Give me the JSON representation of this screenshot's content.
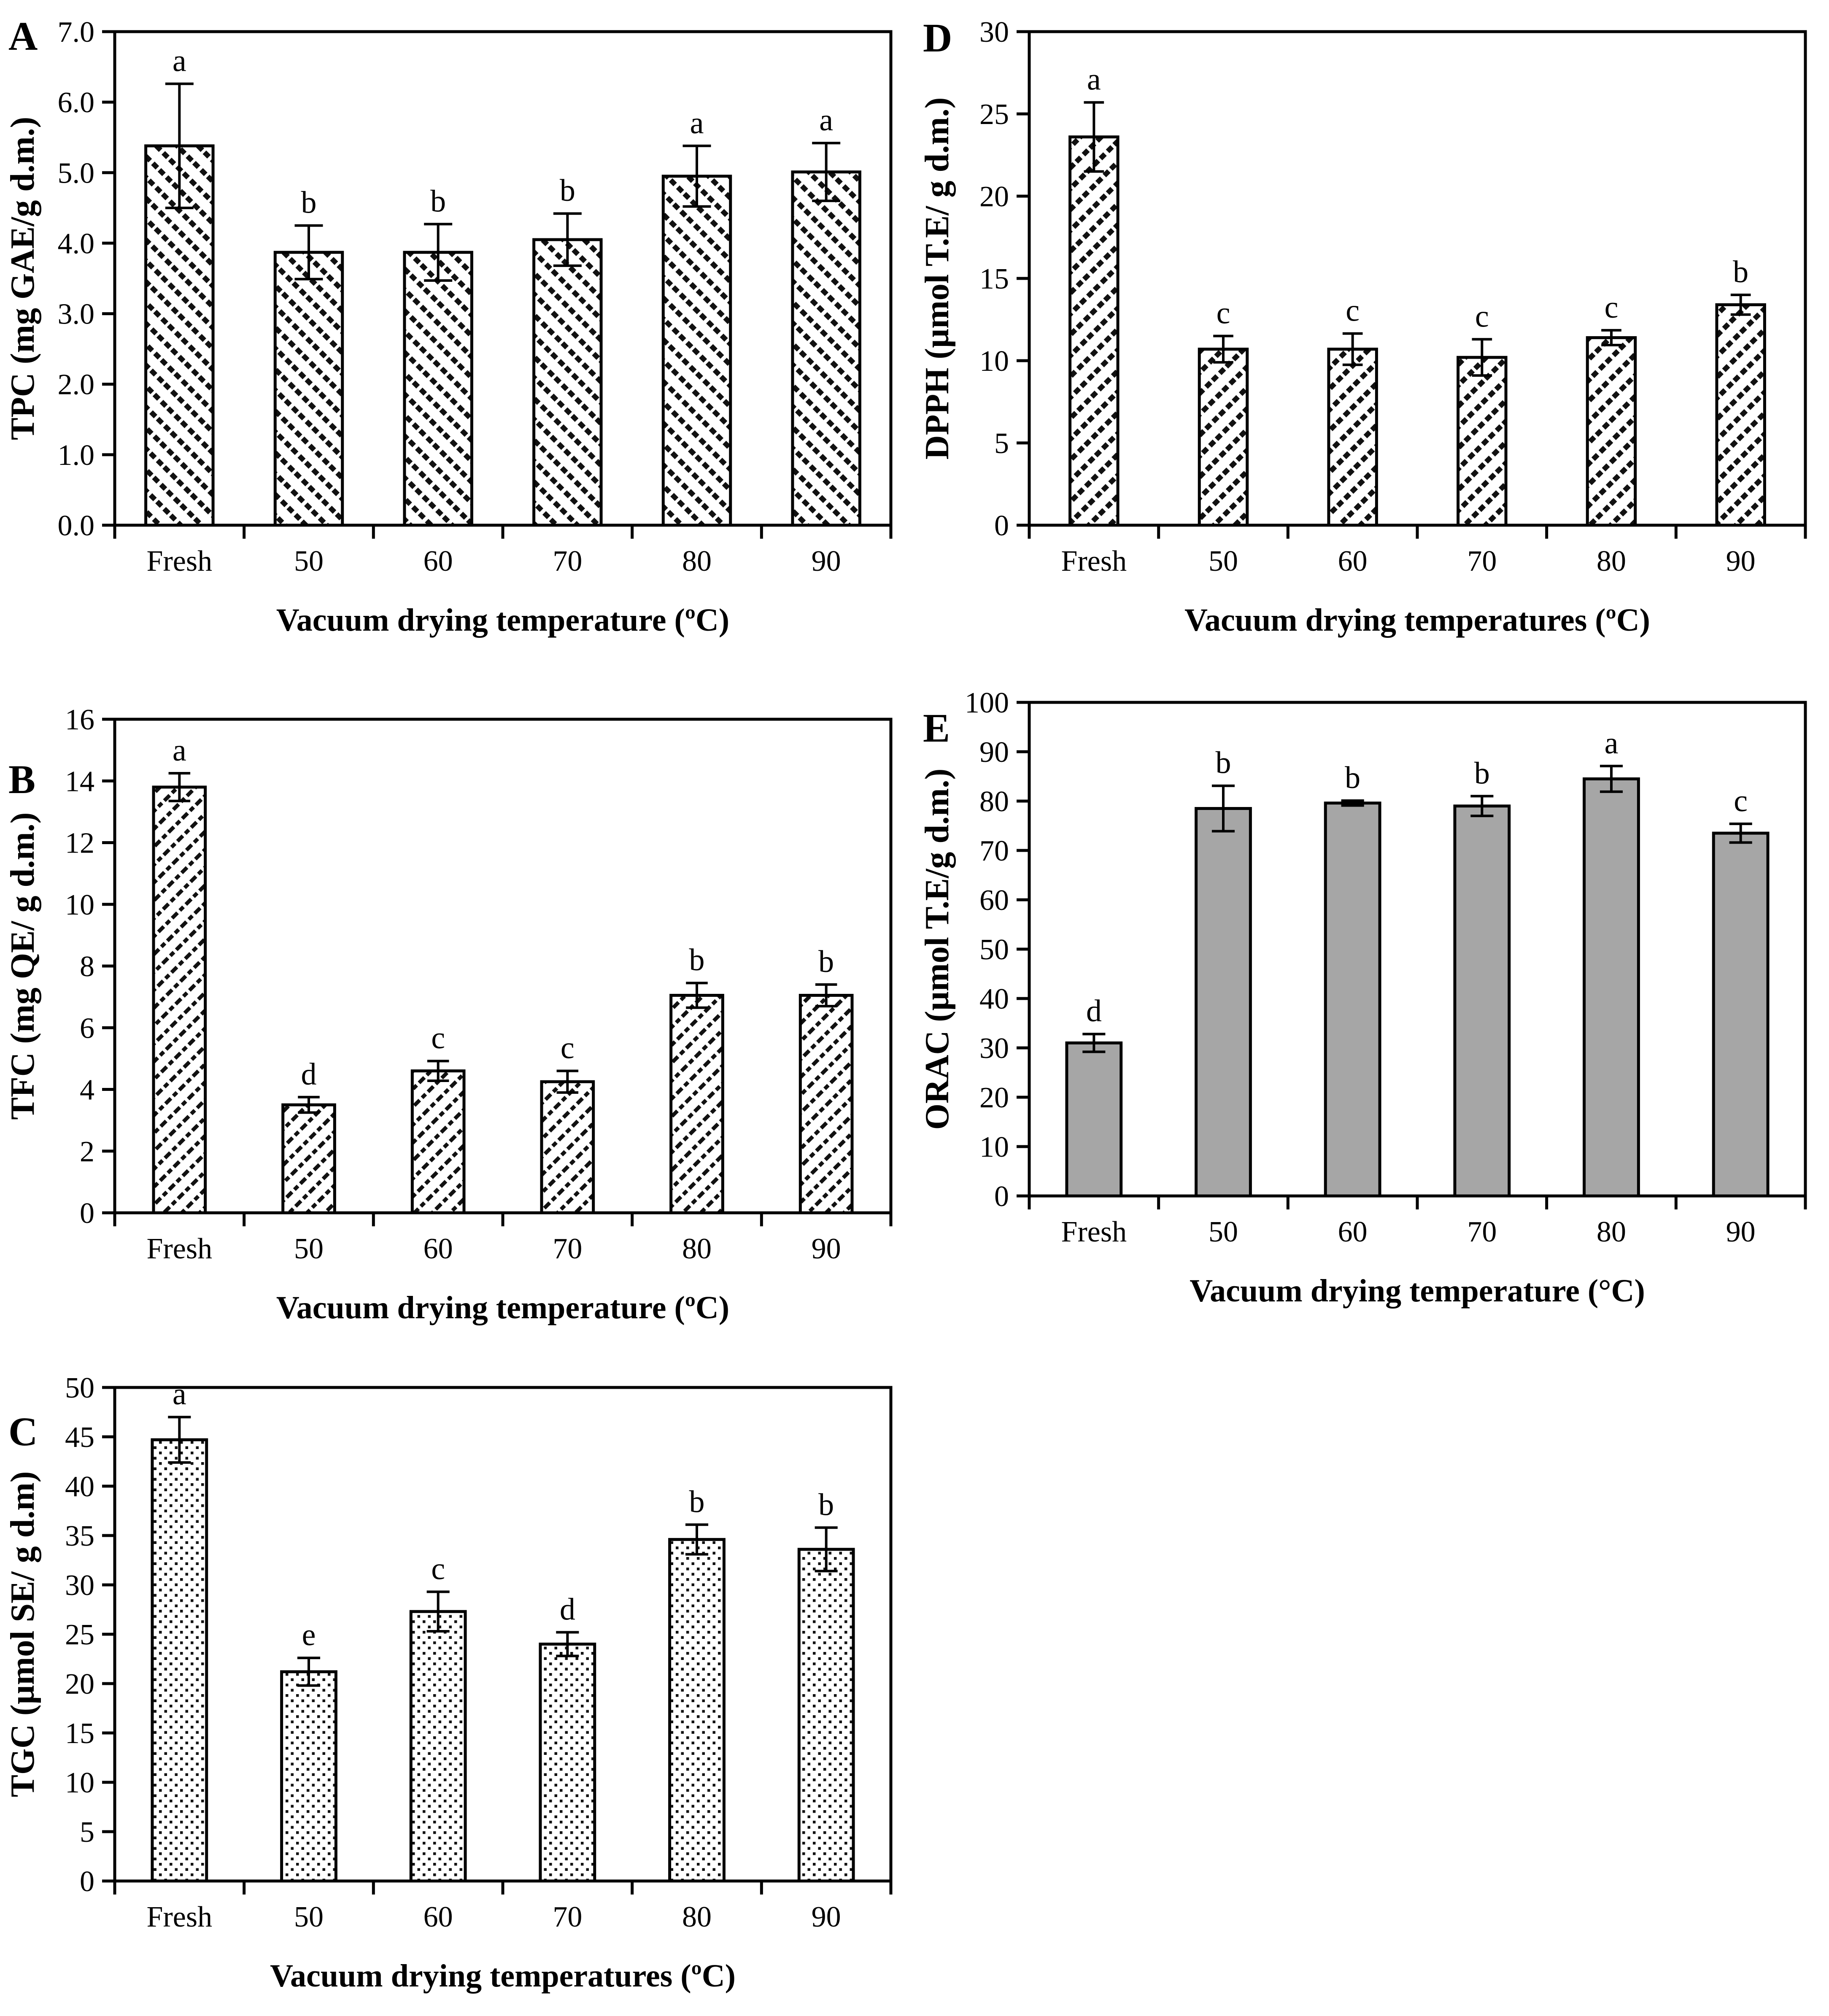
{
  "figure": {
    "background": "#ffffff",
    "bar_outline_color": "#000000",
    "solid_bar_color": "#a6a6a6"
  },
  "chart_data": [
    {
      "panel": "A",
      "type": "bar",
      "ylabel": "TPC (mg GAE/g d.m.)",
      "xlabel": "Vacuum drying temperature (ºC)",
      "categories": [
        "Fresh",
        "50",
        "60",
        "70",
        "80",
        "90"
      ],
      "values": [
        5.38,
        3.87,
        3.87,
        4.05,
        4.95,
        5.01
      ],
      "errors": [
        0.88,
        0.38,
        0.4,
        0.37,
        0.43,
        0.41
      ],
      "sig_letters": [
        "a",
        "b",
        "b",
        "b",
        "a",
        "a"
      ],
      "ylim": [
        0,
        7
      ],
      "ytick_step": 1,
      "ytick_decimals": 1,
      "bar_fill": "hatch-down-dashed",
      "grid": false,
      "legend": null
    },
    {
      "panel": "B",
      "type": "bar",
      "ylabel": "TFC (mg QE/ g d.m.)",
      "xlabel": "Vacuum drying temperature (ºC)",
      "categories": [
        "Fresh",
        "50",
        "60",
        "70",
        "80",
        "90"
      ],
      "values": [
        13.8,
        3.5,
        4.6,
        4.25,
        7.05,
        7.05
      ],
      "errors": [
        0.45,
        0.25,
        0.32,
        0.35,
        0.4,
        0.35
      ],
      "sig_letters": [
        "a",
        "d",
        "c",
        "c",
        "b",
        "b"
      ],
      "ylim": [
        0,
        16
      ],
      "ytick_step": 2,
      "ytick_decimals": 0,
      "bar_fill": "hatch-up-dashed-dense",
      "grid": false,
      "legend": null
    },
    {
      "panel": "C",
      "type": "bar",
      "ylabel": "TGC (µmol SE/ g d.m)",
      "xlabel": "Vacuum drying temperatures (ºC)",
      "categories": [
        "Fresh",
        "50",
        "60",
        "70",
        "80",
        "90"
      ],
      "values": [
        44.7,
        21.2,
        27.3,
        24.0,
        34.6,
        33.6
      ],
      "errors": [
        2.3,
        1.4,
        2.0,
        1.2,
        1.5,
        2.2
      ],
      "sig_letters": [
        "a",
        "e",
        "c",
        "d",
        "b",
        "b"
      ],
      "ylim": [
        0,
        50
      ],
      "ytick_step": 5,
      "ytick_decimals": 0,
      "bar_fill": "dots",
      "grid": false,
      "legend": null
    },
    {
      "panel": "D",
      "type": "bar",
      "ylabel": "DPPH (µmol T.E/ g d.m.)",
      "xlabel": "Vacuum drying temperatures (ºC)",
      "categories": [
        "Fresh",
        "50",
        "60",
        "70",
        "80",
        "90"
      ],
      "values": [
        23.6,
        10.7,
        10.7,
        10.2,
        11.4,
        13.4
      ],
      "errors": [
        2.1,
        0.8,
        0.95,
        1.1,
        0.45,
        0.6
      ],
      "sig_letters": [
        "a",
        "c",
        "c",
        "c",
        "c",
        "b"
      ],
      "ylim": [
        0,
        30
      ],
      "ytick_step": 5,
      "ytick_decimals": 0,
      "bar_fill": "hatch-up-dashed",
      "grid": false,
      "legend": null
    },
    {
      "panel": "E",
      "type": "bar",
      "ylabel": "ORAC (µmol T.E/g d.m.)",
      "xlabel": "Vacuum drying temperature (°C)",
      "categories": [
        "Fresh",
        "50",
        "60",
        "70",
        "80",
        "90"
      ],
      "values": [
        31.0,
        78.5,
        79.6,
        79.0,
        84.5,
        73.5
      ],
      "errors": [
        1.8,
        4.6,
        0.5,
        2.0,
        2.6,
        1.9
      ],
      "sig_letters": [
        "d",
        "b",
        "b",
        "b",
        "a",
        "c"
      ],
      "ylim": [
        0,
        100
      ],
      "ytick_step": 10,
      "ytick_decimals": 0,
      "bar_fill": "solid",
      "bar_color": "#a6a6a6",
      "grid": false,
      "legend": null
    }
  ]
}
